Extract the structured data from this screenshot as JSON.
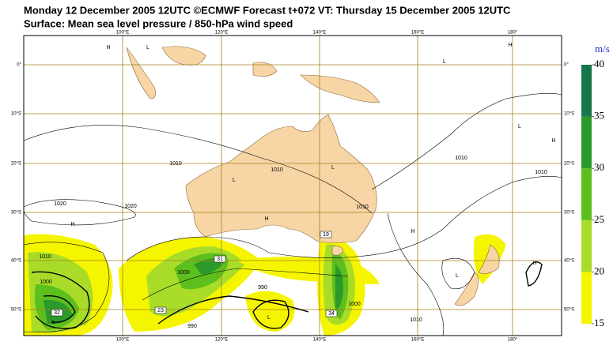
{
  "header": {
    "title_line1": "Monday 12 December 2005 12UTC ©ECMWF Forecast t+072 VT: Thursday 15 December 2005 12UTC",
    "title_line2": "Surface: Mean sea level pressure / 850-hPa wind speed"
  },
  "map": {
    "lon_labels": [
      "100°E",
      "120°E",
      "140°E",
      "160°E",
      "180°"
    ],
    "lat_labels": [
      "0°",
      "10°S",
      "20°S",
      "30°S",
      "40°S",
      "50°S"
    ],
    "labels": [
      "H",
      "L",
      "L",
      "H",
      "L",
      "H",
      "L",
      "L",
      "H",
      "H",
      "H",
      "L",
      "H",
      "L",
      "L",
      "1010",
      "1010",
      "1010",
      "1010",
      "1010",
      "1020",
      "1020",
      "1010",
      "1000",
      "1000",
      "990",
      "1010",
      "1000",
      "990"
    ],
    "wind_max_labels": [
      "31",
      "19",
      "23",
      "34",
      "32"
    ]
  },
  "colorbar": {
    "unit": "m/s",
    "range": [
      15,
      40
    ],
    "ticks": [
      15,
      20,
      25,
      30,
      35,
      40
    ],
    "colors": [
      "#f5f500",
      "#a8dc28",
      "#5cbf1d",
      "#2b9a2b",
      "#16774a"
    ]
  }
}
